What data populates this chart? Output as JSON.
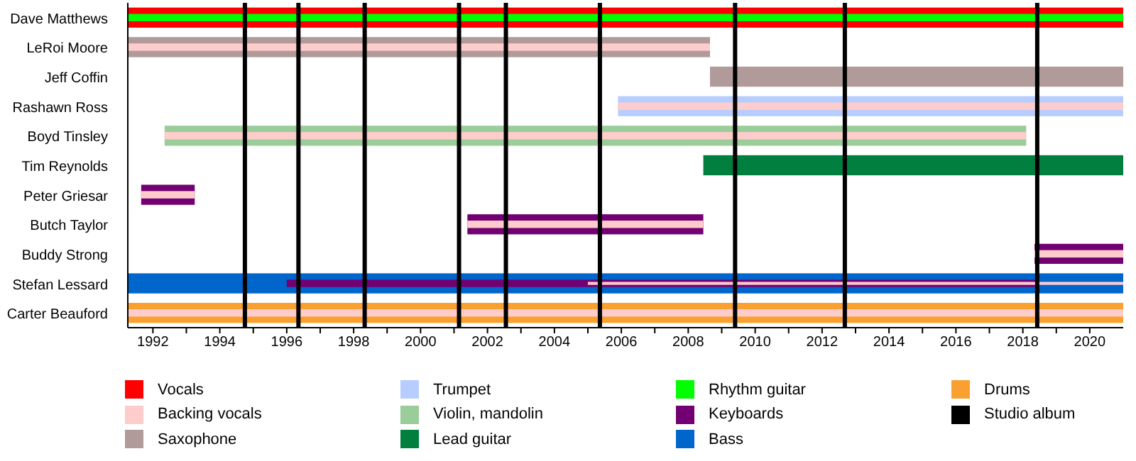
{
  "chart_data": {
    "type": "bar",
    "orientation": "horizontal",
    "categories": [
      "Dave Matthews",
      "LeRoi Moore",
      "Jeff Coffin",
      "Rashawn Ross",
      "Boyd Tinsley",
      "Tim Reynolds",
      "Peter Griesar",
      "Butch Taylor",
      "Buddy Strong",
      "Stefan Lessard",
      "Carter Beauford"
    ],
    "series": [
      {
        "name": "Vocals",
        "color": "#ff0000",
        "values": [
          29.75,
          null,
          null,
          null,
          null,
          null,
          null,
          null,
          null,
          null,
          null
        ],
        "base": [
          1991.25,
          null,
          null,
          null,
          null,
          null,
          null,
          null,
          null,
          null,
          null
        ]
      },
      {
        "name": "Backing vocals",
        "color": "#ffcccc",
        "values": [
          null,
          17.4,
          null,
          15.1,
          25.75,
          null,
          1.6,
          7.05,
          2.65,
          16,
          29.75
        ],
        "base": [
          null,
          1991.25,
          null,
          2005.9,
          1992.35,
          null,
          1991.65,
          2001.4,
          2018.35,
          2005,
          1991.25
        ]
      },
      {
        "name": "Saxophone",
        "color": "#b09a9a",
        "values": [
          null,
          17.4,
          12.35,
          null,
          null,
          null,
          null,
          null,
          null,
          null,
          null
        ],
        "base": [
          null,
          1991.25,
          2008.65,
          null,
          null,
          null,
          null,
          null,
          null,
          null,
          null
        ]
      },
      {
        "name": "Trumpet",
        "color": "#b8cdff",
        "values": [
          null,
          null,
          null,
          15.1,
          null,
          null,
          null,
          null,
          null,
          null,
          null
        ],
        "base": [
          null,
          null,
          null,
          2005.9,
          null,
          null,
          null,
          null,
          null,
          null,
          null
        ]
      },
      {
        "name": "Violin, mandolin",
        "color": "#9acd9a",
        "values": [
          null,
          null,
          null,
          null,
          25.75,
          null,
          null,
          null,
          null,
          null,
          null
        ],
        "base": [
          null,
          null,
          null,
          null,
          1992.35,
          null,
          null,
          null,
          null,
          null,
          null
        ]
      },
      {
        "name": "Lead guitar",
        "color": "#007f3f",
        "values": [
          null,
          null,
          null,
          null,
          null,
          12.55,
          null,
          null,
          null,
          null,
          null
        ],
        "base": [
          null,
          null,
          null,
          null,
          null,
          2008.45,
          null,
          null,
          null,
          null,
          null
        ]
      },
      {
        "name": "Rhythm guitar",
        "color": "#00ff00",
        "values": [
          29.75,
          null,
          null,
          null,
          null,
          null,
          null,
          null,
          null,
          null,
          null
        ],
        "base": [
          1991.25,
          null,
          null,
          null,
          null,
          null,
          null,
          null,
          null,
          null,
          null
        ]
      },
      {
        "name": "Keyboards",
        "color": "#730073",
        "values": [
          null,
          null,
          null,
          null,
          null,
          null,
          1.6,
          7.05,
          2.65,
          22.4,
          null
        ],
        "base": [
          null,
          null,
          null,
          null,
          null,
          null,
          1991.65,
          2001.4,
          2018.35,
          1996,
          null
        ]
      },
      {
        "name": "Bass",
        "color": "#0066cc",
        "values": [
          null,
          null,
          null,
          null,
          null,
          null,
          null,
          null,
          null,
          29.75,
          null
        ],
        "base": [
          null,
          null,
          null,
          null,
          null,
          null,
          null,
          null,
          null,
          1991.25,
          null
        ]
      },
      {
        "name": "Drums",
        "color": "#f9a030",
        "values": [
          null,
          null,
          null,
          null,
          null,
          null,
          null,
          null,
          null,
          null,
          29.75
        ],
        "base": [
          null,
          null,
          null,
          null,
          null,
          null,
          null,
          null,
          null,
          null,
          1991.25
        ]
      }
    ],
    "xlim": [
      1991.25,
      2021
    ],
    "xticks": [
      1992,
      {
        "value": 1993,
        "label": null
      },
      1994,
      {
        "value": 1995,
        "label": null
      },
      1996,
      {
        "value": 1997,
        "label": null
      },
      1998,
      {
        "value": 1999,
        "label": null
      },
      2000,
      {
        "value": 2001,
        "label": null
      },
      2002,
      {
        "value": 2003,
        "label": null
      },
      2004,
      {
        "value": 2005,
        "label": null
      },
      2006,
      {
        "value": 2007,
        "label": null
      },
      2008,
      {
        "value": 2009,
        "label": null
      },
      2010,
      {
        "value": 2011,
        "label": null
      },
      2012,
      {
        "value": 2013,
        "label": null
      },
      2014,
      {
        "value": 2015,
        "label": null
      },
      2016,
      {
        "value": 2017,
        "label": null
      },
      2018,
      {
        "value": 2019,
        "label": null
      },
      2020
    ],
    "ref_lines": [
      {
        "axis": "x",
        "value": 1994.75,
        "label": "Studio album",
        "color": "#000000"
      },
      {
        "axis": "x",
        "value": 1996.35,
        "color": "#000000"
      },
      {
        "axis": "x",
        "value": 1998.33,
        "color": "#000000"
      },
      {
        "axis": "x",
        "value": 2001.15,
        "color": "#000000"
      },
      {
        "axis": "x",
        "value": 2002.55,
        "color": "#000000"
      },
      {
        "axis": "x",
        "value": 2005.36,
        "color": "#000000"
      },
      {
        "axis": "x",
        "value": 2009.4,
        "color": "#000000"
      },
      {
        "axis": "x",
        "value": 2012.68,
        "color": "#000000"
      },
      {
        "axis": "x",
        "value": 2018.43,
        "color": "#000000"
      }
    ],
    "legend": "bottom",
    "grid": false
  }
}
